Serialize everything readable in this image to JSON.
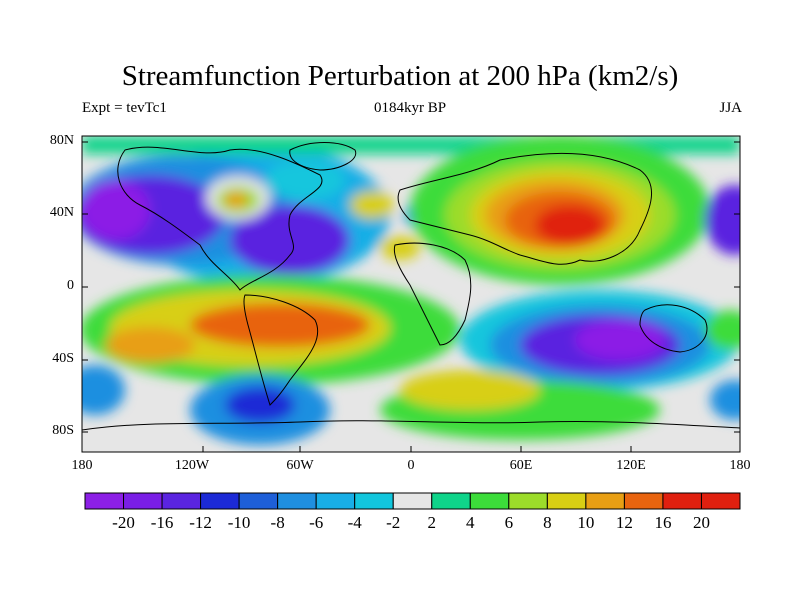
{
  "title": "Streamfunction Perturbation at 200 hPa (km2/s)",
  "left_label": "Expt = tevTc1",
  "center_label": "0184kyr BP",
  "right_label": "JJA",
  "lat_labels": [
    "80N",
    "40N",
    "0",
    "40S",
    "80S"
  ],
  "lon_labels": [
    "180",
    "120W",
    "60W",
    "0",
    "60E",
    "120E",
    "180"
  ],
  "colorbar": {
    "labels": [
      "-20",
      "-16",
      "-12",
      "-10",
      "-8",
      "-6",
      "-4",
      "-2",
      "2",
      "4",
      "6",
      "8",
      "10",
      "12",
      "16",
      "20"
    ],
    "colors": [
      "#8c1fe6",
      "#7a1ee6",
      "#5a24e0",
      "#1c2ad6",
      "#1e5fd8",
      "#1f8fe0",
      "#18aee6",
      "#12c6dd",
      "#e6e6e6",
      "#0fd48a",
      "#3cdc3a",
      "#9cdc2a",
      "#d8cf14",
      "#e89f14",
      "#e8640f",
      "#e0200f"
    ]
  },
  "colors": {
    "neutral": "#e6e6e6",
    "frame": "#000000"
  }
}
